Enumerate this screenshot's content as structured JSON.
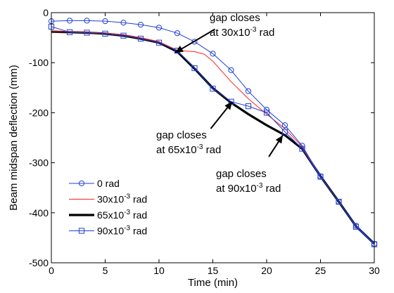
{
  "chart_data": {
    "type": "line",
    "title": "",
    "xlabel": "Time (min)",
    "ylabel": "Beam midspan deflection (mm)",
    "xlim": [
      0,
      30
    ],
    "ylim": [
      -500,
      0
    ],
    "xticks": [
      0,
      5,
      10,
      15,
      20,
      25,
      30
    ],
    "yticks": [
      0,
      -100,
      -200,
      -300,
      -400,
      -500
    ],
    "grid": false,
    "legend_position": "bottom-left",
    "series": [
      {
        "name": "0 rad",
        "color": "#1f3fd6",
        "marker": "circle",
        "line_width": "thin",
        "x": [
          0,
          1.7,
          3.3,
          5,
          6.7,
          8.3,
          10,
          11.7,
          13.3,
          15,
          16.7,
          18.3,
          20,
          21.7,
          23.3,
          25,
          26.7,
          28.3,
          30
        ],
        "y": [
          -17,
          -16,
          -16,
          -17,
          -20,
          -24,
          -30,
          -41,
          -58,
          -82,
          -115,
          -157,
          -194,
          -225,
          -266,
          -327,
          -378,
          -426,
          -462
        ]
      },
      {
        "name": "30x10-3 rad",
        "color": "#ff2020",
        "marker": "none",
        "line_width": "thin",
        "x": [
          0,
          1.7,
          3.3,
          5,
          6.7,
          8.3,
          10,
          11.7,
          12.5,
          13.3,
          14.2,
          15,
          16.7,
          18.3,
          20,
          21.7,
          23.3,
          25,
          26.7,
          28.3,
          30
        ],
        "y": [
          -38,
          -38,
          -39,
          -41,
          -44,
          -50,
          -58,
          -75,
          -77,
          -78,
          -83,
          -97,
          -138,
          -172,
          -203,
          -232,
          -268,
          -327,
          -378,
          -427,
          -462
        ]
      },
      {
        "name": "65x10-3 rad",
        "color": "#000000",
        "marker": "none",
        "line_width": "thick",
        "x": [
          0,
          1.7,
          3.3,
          5,
          6.7,
          8.3,
          10,
          11.7,
          13.3,
          15,
          16.7,
          18.3,
          20,
          21.7,
          23.3,
          25,
          26.7,
          28.3,
          30
        ],
        "y": [
          -38,
          -39,
          -40,
          -42,
          -46,
          -52,
          -60,
          -78,
          -112,
          -151,
          -180,
          -203,
          -225,
          -245,
          -272,
          -327,
          -378,
          -427,
          -462
        ]
      },
      {
        "name": "90x10-3 rad",
        "color": "#1f3fd6",
        "marker": "square",
        "line_width": "thin",
        "x": [
          0,
          1.7,
          3.3,
          5,
          6.7,
          8.3,
          10,
          11.7,
          13.3,
          15,
          16.7,
          18.3,
          20,
          21.7,
          23.3,
          25,
          26.7,
          28.3,
          30
        ],
        "y": [
          -28,
          -39,
          -40,
          -42,
          -46,
          -52,
          -60,
          -76,
          -111,
          -152,
          -178,
          -187,
          -200,
          -238,
          -272,
          -328,
          -378,
          -428,
          -463
        ]
      }
    ],
    "legend": [
      {
        "label_main": "0 rad",
        "label_sup": "",
        "label_tail": ""
      },
      {
        "label_main": "30x10",
        "label_sup": "-3",
        "label_tail": " rad"
      },
      {
        "label_main": "65x10",
        "label_sup": "-3",
        "label_tail": " rad"
      },
      {
        "label_main": "90x10",
        "label_sup": "-3",
        "label_tail": " rad"
      }
    ],
    "annotations": [
      {
        "line1": "gap closes",
        "line2_main": "at 30x10",
        "line2_sup": "-3",
        "line2_tail": " rad",
        "target": [
          11.5,
          -80
        ],
        "from": [
          15.2,
          -33
        ]
      },
      {
        "line1": "gap closes",
        "line2_main": "at 65x10",
        "line2_sup": "-3",
        "line2_tail": " rad",
        "target": [
          16.8,
          -178
        ],
        "from": [
          14.8,
          -232
        ]
      },
      {
        "line1": "gap closes",
        "line2_main": "at 90x10",
        "line2_sup": "-3",
        "line2_tail": " rad",
        "target": [
          21.5,
          -245
        ],
        "from": [
          20.2,
          -288
        ]
      }
    ]
  }
}
